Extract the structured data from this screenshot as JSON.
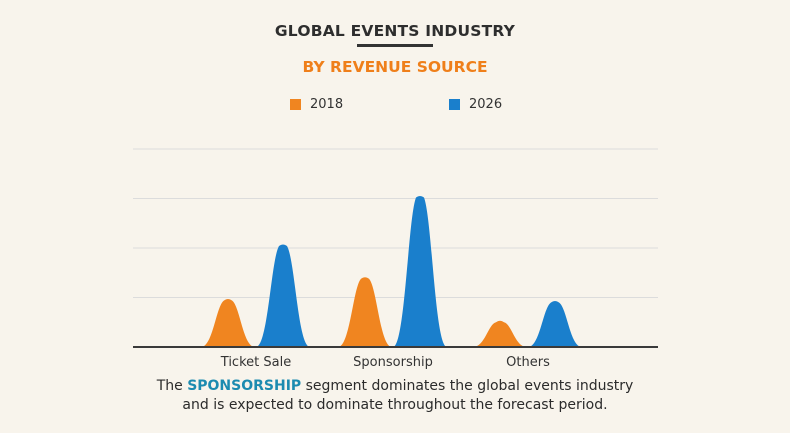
{
  "header": {
    "title": "GLOBAL EVENTS INDUSTRY",
    "subtitle": "BY REVENUE SOURCE"
  },
  "legend": {
    "items": [
      {
        "label": "2018",
        "color": "#f08520"
      },
      {
        "label": "2026",
        "color": "#1a7fcc"
      }
    ]
  },
  "chart_data": {
    "type": "area",
    "title": "GLOBAL EVENTS INDUSTRY",
    "subtitle": "BY REVENUE SOURCE",
    "categories": [
      "Ticket Sale",
      "Sponsorship",
      "Others"
    ],
    "series": [
      {
        "name": "2018",
        "color": "#f08520",
        "values": [
          0.98,
          1.42,
          0.54
        ]
      },
      {
        "name": "2026",
        "color": "#1a7fcc",
        "values": [
          2.08,
          3.06,
          0.94
        ]
      }
    ],
    "ylim": [
      0,
      4
    ],
    "grid": true,
    "legend_position": "top"
  },
  "caption": {
    "prefix": "The ",
    "highlight": "SPONSORSHIP",
    "suffix": " segment dominates the global events industry",
    "line2": "and is expected to dominate throughout the forecast period."
  }
}
